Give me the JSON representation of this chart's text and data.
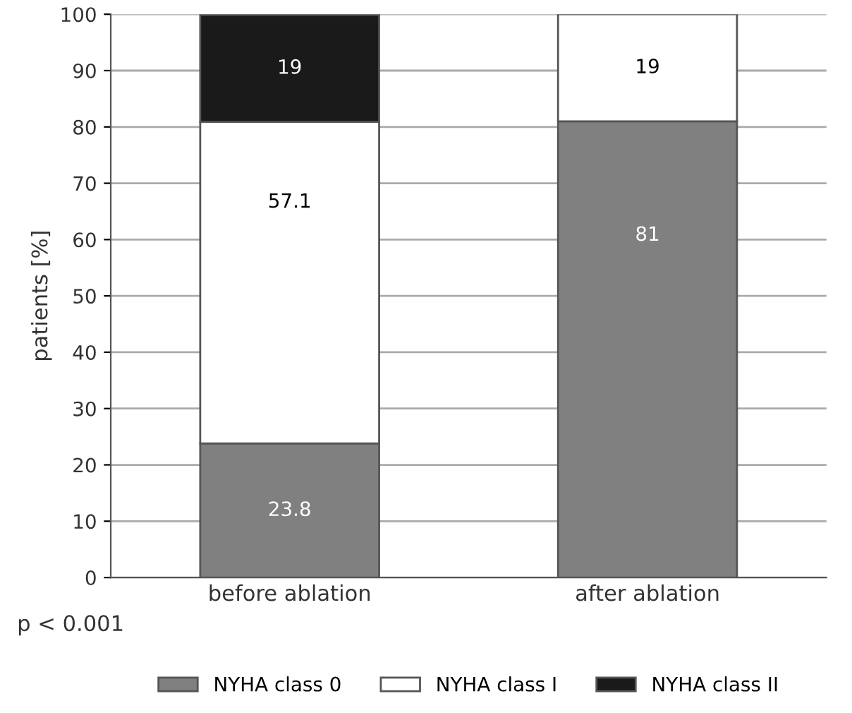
{
  "chart_data": {
    "type": "bar",
    "stacked": true,
    "ylabel": "patients [%]",
    "categories": [
      "before ablation",
      "after ablation"
    ],
    "series": [
      {
        "name": "NYHA class 0",
        "color": "#808080",
        "values": [
          23.8,
          81
        ],
        "value_labels": [
          "23.8",
          "81"
        ]
      },
      {
        "name": "NYHA class I",
        "color": "#ffffff",
        "values": [
          57.1,
          19
        ],
        "value_labels": [
          "57.1",
          "19"
        ]
      },
      {
        "name": "NYHA class II",
        "color": "#1a1a1a",
        "values": [
          19,
          null
        ],
        "value_labels": [
          "19",
          null
        ]
      }
    ],
    "ylim": [
      0,
      100
    ],
    "yticks": [
      0,
      10,
      20,
      30,
      40,
      50,
      60,
      70,
      80,
      90,
      100
    ],
    "grid": "y",
    "legend": "bottom",
    "annotations": [
      "p < 0.001"
    ]
  }
}
